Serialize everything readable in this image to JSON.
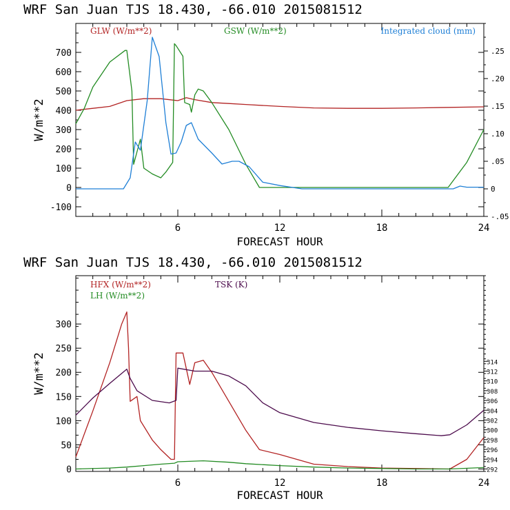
{
  "chart_data": [
    {
      "type": "line",
      "title": "WRF   San Juan TJS  18.430, -66.010  2015081512",
      "xlabel": "FORECAST HOUR",
      "ylabel": "W/m**2",
      "xlim": [
        0,
        24
      ],
      "ylim": [
        -150,
        850
      ],
      "y2lim": [
        -0.05,
        0.3
      ],
      "xticks": [
        "6",
        "12",
        "18",
        "24"
      ],
      "yticks": [
        "-100",
        "0",
        "100",
        "200",
        "300",
        "400",
        "500",
        "600",
        "700"
      ],
      "y2ticks": [
        "-.05",
        "0",
        ".05",
        ".10",
        ".15",
        ".20",
        ".25"
      ],
      "series": [
        {
          "name": "GLW (W/m**2)",
          "color": "#b22222",
          "axis": "left",
          "x": [
            0,
            1,
            2,
            3,
            4,
            5,
            6,
            6.5,
            7,
            8,
            9,
            10,
            12,
            14,
            16,
            18,
            20,
            22,
            24
          ],
          "values": [
            400,
            410,
            420,
            450,
            460,
            460,
            450,
            465,
            455,
            440,
            435,
            430,
            420,
            412,
            410,
            410,
            412,
            415,
            418
          ]
        },
        {
          "name": "GSW (W/m**2)",
          "color": "#228b22",
          "axis": "left",
          "x": [
            0,
            0.5,
            1,
            2,
            2.9,
            3.0,
            3.3,
            3.4,
            3.8,
            4.0,
            4.5,
            5.0,
            5.3,
            5.7,
            5.8,
            5.9,
            6.3,
            6.4,
            6.7,
            6.8,
            7.0,
            7.2,
            7.5,
            8,
            9,
            10,
            10.8,
            12,
            16,
            20,
            21.9,
            23,
            24
          ],
          "values": [
            330,
            410,
            520,
            650,
            710,
            710,
            500,
            120,
            250,
            100,
            70,
            50,
            80,
            130,
            745,
            735,
            680,
            440,
            430,
            390,
            480,
            510,
            500,
            440,
            300,
            120,
            0,
            0,
            0,
            0,
            0,
            130,
            300
          ]
        },
        {
          "name": "Integrated cloud (mm)",
          "color": "#1e7fd6",
          "axis": "right",
          "x": [
            0,
            2.8,
            3.2,
            3.5,
            3.8,
            4.2,
            4.5,
            4.9,
            5.3,
            5.6,
            5.9,
            6.2,
            6.5,
            6.8,
            7.2,
            8,
            8.6,
            9.2,
            9.6,
            10.2,
            11,
            12,
            13.3,
            16,
            20,
            22.2,
            22.6,
            23,
            24
          ],
          "values": [
            0,
            0,
            0.02,
            0.085,
            0.07,
            0.16,
            0.275,
            0.24,
            0.12,
            0.063,
            0.065,
            0.085,
            0.115,
            0.12,
            0.09,
            0.065,
            0.045,
            0.05,
            0.05,
            0.04,
            0.012,
            0.006,
            0.0,
            0.0,
            0.0,
            0.0,
            0.005,
            0.003,
            0.003
          ]
        }
      ]
    },
    {
      "type": "line",
      "title": "WRF   San Juan TJS  18.430, -66.010  2015081512",
      "xlabel": "FORECAST HOUR",
      "ylabel": "W/m**2",
      "xlim": [
        0,
        24
      ],
      "ylim": [
        -5,
        400
      ],
      "y2lim": [
        291.5,
        331.5
      ],
      "xticks": [
        "6",
        "12",
        "18",
        "24"
      ],
      "yticks": [
        "0",
        "50",
        "100",
        "150",
        "200",
        "250",
        "300"
      ],
      "y2ticks": [
        "292",
        "294",
        "296",
        "298",
        "300",
        "302",
        "304",
        "306",
        "308",
        "310",
        "312",
        "314"
      ],
      "series": [
        {
          "name": "HFX (W/m**2)",
          "color": "#b22222",
          "axis": "left",
          "x": [
            0,
            1,
            2,
            2.7,
            3.0,
            3.1,
            3.2,
            3.6,
            3.8,
            4.5,
            5.0,
            5.6,
            5.8,
            5.9,
            6.3,
            6.7,
            7.0,
            7.5,
            8,
            9,
            10,
            10.8,
            12,
            14,
            16,
            18,
            20,
            22,
            23,
            24
          ],
          "values": [
            25,
            120,
            220,
            300,
            325,
            250,
            140,
            150,
            100,
            60,
            40,
            20,
            20,
            240,
            240,
            175,
            220,
            225,
            200,
            140,
            80,
            40,
            30,
            10,
            5,
            2,
            1,
            0,
            20,
            65
          ]
        },
        {
          "name": "LH (W/m**2)",
          "color": "#228b22",
          "axis": "left",
          "x": [
            0,
            2,
            3,
            4,
            5,
            5.8,
            6,
            7.5,
            9,
            10,
            12,
            14,
            16,
            18,
            20,
            22,
            24
          ],
          "values": [
            0,
            2,
            4,
            7,
            10,
            12,
            15,
            17,
            14,
            11,
            7,
            4,
            2,
            1,
            0,
            0,
            3
          ]
        },
        {
          "name": "TSK (K)",
          "color": "#4b0a4b",
          "axis": "right",
          "x": [
            0,
            1,
            2,
            3,
            3.2,
            3.6,
            4.5,
            5.5,
            5.9,
            6.0,
            7,
            8,
            9,
            10,
            11,
            12,
            14,
            16,
            18,
            20,
            21.5,
            22,
            23,
            24
          ],
          "values": [
            303,
            306.5,
            309.5,
            312.4,
            310.5,
            308,
            306,
            305.5,
            306,
            312.6,
            312,
            312,
            311,
            309,
            305.5,
            303.5,
            301.5,
            300.5,
            299.8,
            299.2,
            298.8,
            299,
            301,
            304
          ]
        }
      ]
    }
  ]
}
